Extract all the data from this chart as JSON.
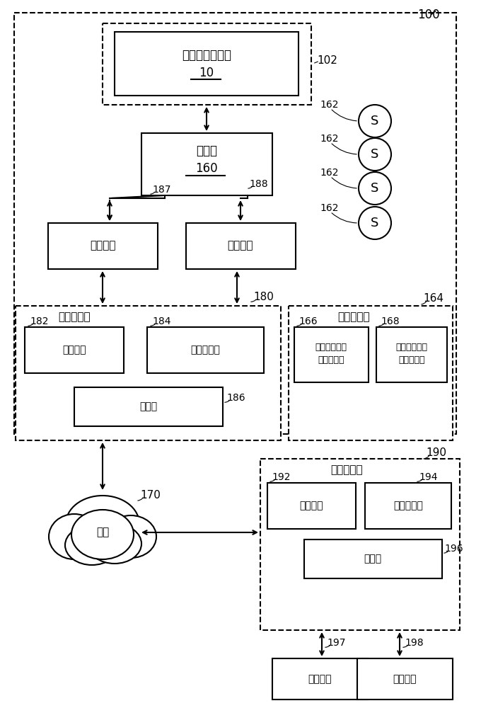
{
  "bg_color": "#ffffff",
  "fig_width": 6.8,
  "fig_height": 10.0,
  "dpi": 100,
  "labels": {
    "engine_line1": "燃气涡轮发动机",
    "engine_line2": "10",
    "controller_line1": "控制器",
    "controller_line2": "160",
    "input_dev": "输入设备",
    "output_dev": "输出设备",
    "local_pc": "本地计算机",
    "local_server": "本地服务器",
    "comm_if": "通信接口",
    "storage": "存储器设备",
    "processor": "处理器",
    "engine_op_data_1": "发动机测试单",
    "engine_op_data_2": "元操作数据",
    "engine_analysis_1": "发动机测试单",
    "engine_analysis_2": "元分析应用",
    "network": "网络",
    "remote_pc": "远程计算机",
    "input_dev2": "输入设备",
    "output_dev2": "输出设备",
    "S": "S"
  },
  "refs": {
    "r100": "100",
    "r102": "102",
    "r162": "162",
    "r164": "164",
    "r166": "166",
    "r168": "168",
    "r170": "170",
    "r180": "180",
    "r182": "182",
    "r184": "184",
    "r186": "186",
    "r187": "187",
    "r188": "188",
    "r190": "190",
    "r192": "192",
    "r194": "194",
    "r196": "196",
    "r197": "197",
    "r198": "198"
  }
}
